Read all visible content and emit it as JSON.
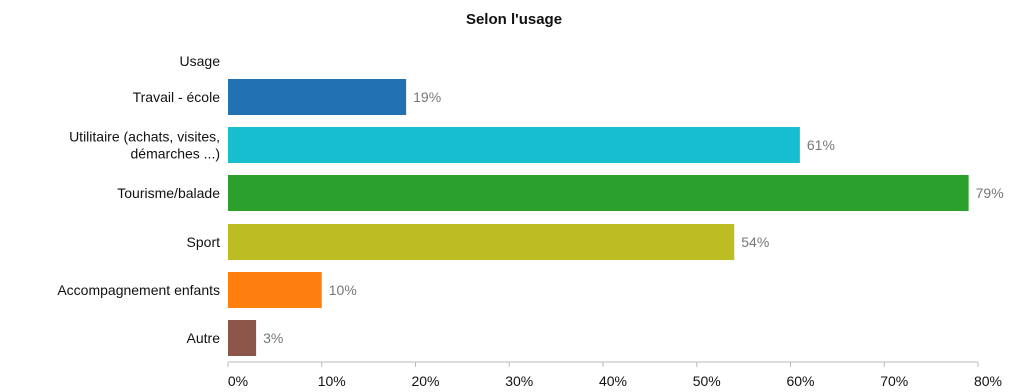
{
  "chart_data": {
    "type": "bar",
    "orientation": "horizontal",
    "title": "Selon l'usage",
    "ylabel": "Usage",
    "xlabel": "",
    "categories": [
      [
        "Travail - école"
      ],
      [
        "Utilitaire (achats, visites,",
        "démarches ...)"
      ],
      [
        "Tourisme/balade"
      ],
      [
        "Sport"
      ],
      [
        "Accompagnement enfants"
      ],
      [
        "Autre"
      ]
    ],
    "values": [
      19,
      61,
      79,
      54,
      10,
      3
    ],
    "data_labels": [
      "19%",
      "61%",
      "79%",
      "54%",
      "10%",
      "3%"
    ],
    "colors": [
      "#2271b3",
      "#17becf",
      "#2ca02c",
      "#bcbd22",
      "#ff7f0e",
      "#8c564b"
    ],
    "xlim": [
      0,
      80
    ],
    "x_ticks": [
      0,
      10,
      20,
      30,
      40,
      50,
      60,
      70,
      80
    ],
    "x_tick_labels": [
      "0%",
      "10%",
      "20%",
      "30%",
      "40%",
      "50%",
      "60%",
      "70%",
      "80%"
    ],
    "grid": false,
    "legend": "none"
  }
}
